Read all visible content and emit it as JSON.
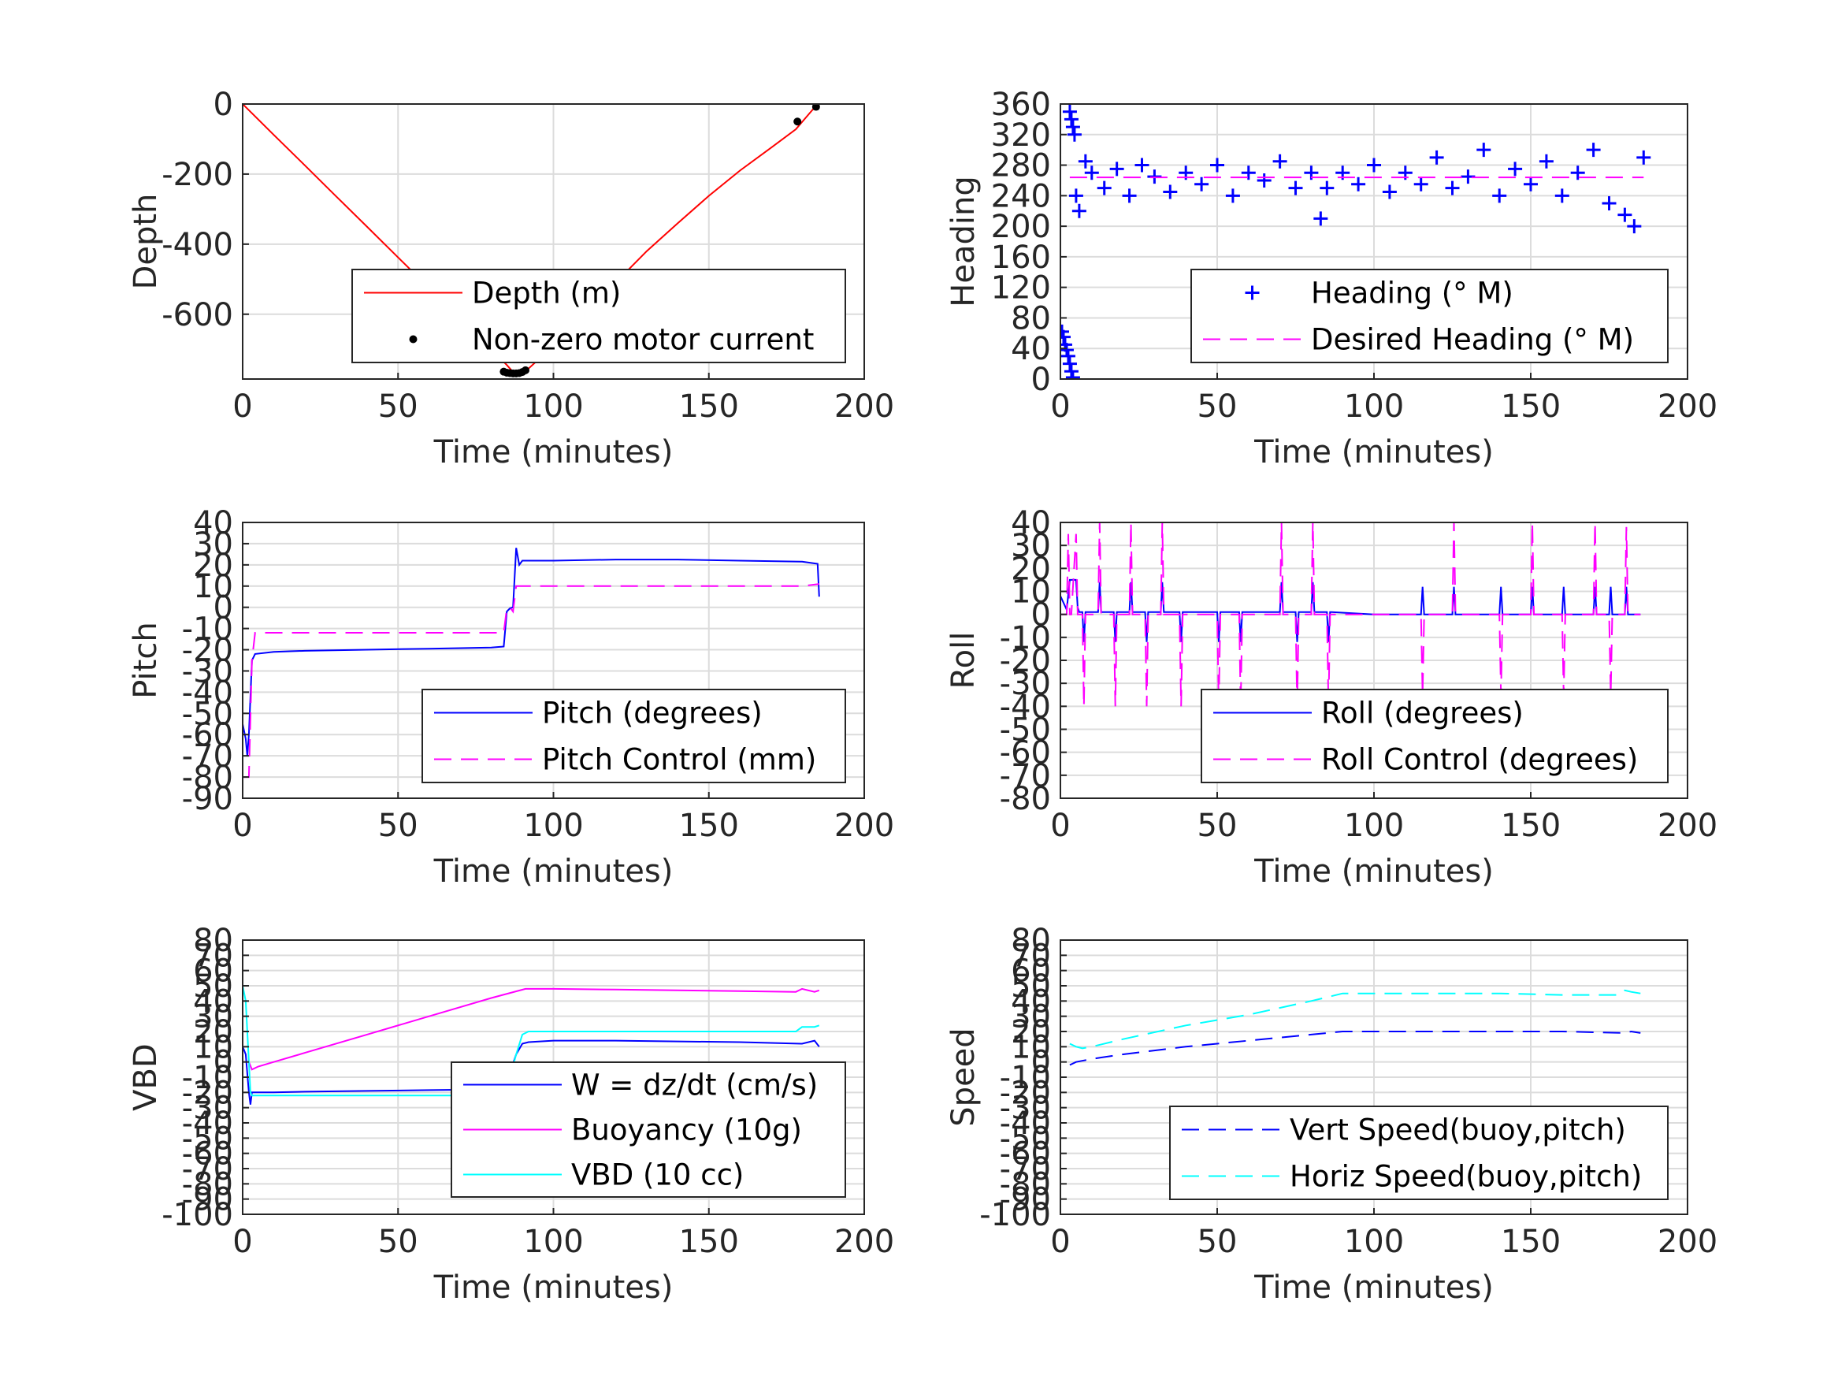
{
  "chart_data": [
    {
      "type": "line",
      "xlabel": "Time (minutes)",
      "ylabel": "Depth",
      "xlim": [
        0,
        200
      ],
      "ylim": [
        -785,
        0
      ],
      "xticks": [
        0,
        50,
        100,
        150,
        200
      ],
      "yticks": [
        0,
        -200,
        -400,
        -600
      ],
      "grid": true,
      "legend": "lower-right",
      "series": [
        {
          "name": "Depth (m)",
          "color": "#ff0000",
          "style": "solid",
          "x": [
            0,
            10,
            20,
            30,
            40,
            50,
            60,
            70,
            80,
            85,
            87,
            89,
            92,
            100,
            110,
            120,
            130,
            140,
            150,
            160,
            170,
            178,
            184
          ],
          "y": [
            0,
            -88,
            -175,
            -263,
            -350,
            -438,
            -525,
            -612,
            -700,
            -745,
            -765,
            -768,
            -755,
            -690,
            -600,
            -510,
            -420,
            -340,
            -262,
            -190,
            -125,
            -72,
            -10
          ]
        },
        {
          "name": "Non-zero motor current",
          "color": "#000000",
          "style": "dots",
          "x": [
            84,
            85,
            86,
            87,
            88,
            89,
            90,
            91,
            178.5,
            184.5
          ],
          "y": [
            -764,
            -767,
            -768,
            -769,
            -769,
            -768,
            -765,
            -760,
            -50,
            -8
          ]
        }
      ]
    },
    {
      "type": "scatter",
      "xlabel": "Time (minutes)",
      "ylabel": "Heading",
      "xlim": [
        0,
        200
      ],
      "ylim": [
        0,
        360
      ],
      "xticks": [
        0,
        50,
        100,
        150,
        200
      ],
      "yticks": [
        0,
        40,
        80,
        120,
        160,
        200,
        240,
        280,
        320,
        360
      ],
      "grid": true,
      "legend": "lower-right",
      "series": [
        {
          "name": "Heading (° M)",
          "color": "#0000ff",
          "style": "plus",
          "x": [
            0.5,
            1,
            1.5,
            2,
            2.5,
            3,
            3.5,
            4,
            3,
            3.5,
            4,
            4.5,
            5,
            6,
            8,
            10,
            14,
            18,
            22,
            26,
            30,
            35,
            40,
            45,
            50,
            55,
            60,
            65,
            70,
            75,
            80,
            83,
            85,
            90,
            95,
            100,
            105,
            110,
            115,
            120,
            125,
            130,
            135,
            140,
            145,
            150,
            155,
            160,
            165,
            170,
            175,
            180,
            183,
            186
          ],
          "y": [
            62,
            55,
            45,
            38,
            30,
            20,
            10,
            2,
            350,
            340,
            330,
            320,
            240,
            220,
            285,
            270,
            250,
            275,
            240,
            280,
            265,
            245,
            270,
            255,
            280,
            240,
            270,
            260,
            285,
            250,
            270,
            210,
            250,
            270,
            255,
            280,
            245,
            270,
            255,
            290,
            250,
            265,
            300,
            240,
            275,
            255,
            285,
            240,
            270,
            300,
            230,
            215,
            200,
            290
          ]
        },
        {
          "name": "Desired Heading (° M)",
          "color": "#ff00ff",
          "style": "dashed",
          "x": [
            3,
            186
          ],
          "y": [
            264,
            264
          ]
        }
      ]
    },
    {
      "type": "line",
      "xlabel": "Time (minutes)",
      "ylabel": "Pitch",
      "xlim": [
        0,
        200
      ],
      "ylim": [
        -90,
        40
      ],
      "xticks": [
        0,
        50,
        100,
        150,
        200
      ],
      "yticks": [
        40,
        30,
        20,
        10,
        0,
        -10,
        -20,
        -30,
        -40,
        -50,
        -60,
        -70,
        -80,
        -90
      ],
      "grid": true,
      "legend": "lower-right",
      "series": [
        {
          "name": "Pitch (degrees)",
          "color": "#0000ff",
          "style": "solid",
          "x": [
            0,
            1,
            1.5,
            2,
            3,
            4,
            10,
            20,
            40,
            60,
            80,
            84,
            85,
            86,
            87,
            88,
            89,
            90,
            100,
            120,
            140,
            160,
            180,
            185,
            185.5
          ],
          "y": [
            -55,
            -62,
            -70,
            -60,
            -25,
            -22,
            -21,
            -20.5,
            -20,
            -19.5,
            -19,
            -18.5,
            -2,
            -0.5,
            0,
            28,
            20,
            22,
            22,
            22.5,
            22.5,
            22,
            21.5,
            20.5,
            5
          ]
        },
        {
          "name": "Pitch Control (mm)",
          "color": "#ff00ff",
          "style": "dashed",
          "x": [
            0,
            1.5,
            2,
            3,
            4,
            10,
            40,
            80,
            84,
            85,
            86,
            87,
            88,
            90,
            100,
            140,
            180,
            185.5
          ],
          "y": [
            -80,
            -80,
            -80,
            -25,
            -12,
            -12,
            -12,
            -12,
            -12,
            -0.5,
            0,
            -2,
            10,
            10,
            10,
            10,
            10,
            11
          ]
        }
      ]
    },
    {
      "type": "line",
      "xlabel": "Time (minutes)",
      "ylabel": "Roll",
      "xlim": [
        0,
        200
      ],
      "ylim": [
        -80,
        40
      ],
      "xticks": [
        0,
        50,
        100,
        150,
        200
      ],
      "yticks": [
        40,
        30,
        20,
        10,
        0,
        -10,
        -20,
        -30,
        -40,
        -50,
        -60,
        -70,
        -80
      ],
      "grid": true,
      "legend": "lower-right",
      "series": [
        {
          "name": "Roll (degrees)",
          "color": "#0000ff",
          "style": "solid",
          "x": [
            0,
            1,
            2,
            3,
            3.5,
            5,
            5.5,
            6,
            7,
            7.5,
            8,
            12,
            12.5,
            13,
            13.5,
            17,
            17.5,
            18,
            18.5,
            22,
            22.5,
            23,
            23.5,
            27,
            27.5,
            28,
            28.5,
            32,
            32.5,
            33,
            33.5,
            38,
            38.5,
            39,
            39.5,
            50,
            50.5,
            51,
            51.5,
            57,
            57.5,
            58,
            58.5,
            70,
            70.5,
            71,
            71.5,
            75,
            75.5,
            76,
            76.5,
            80,
            80.5,
            81,
            81.5,
            85,
            85.5,
            86,
            86.5,
            100,
            115,
            115.5,
            116,
            116.5,
            125,
            125.5,
            126,
            126.5,
            140,
            140.5,
            141,
            141.5,
            150,
            150.5,
            151,
            151.5,
            160,
            160.5,
            161,
            161.5,
            170,
            170.5,
            171,
            171.5,
            175,
            175.5,
            176,
            176.5,
            180,
            180.5,
            181,
            181.5,
            185
          ],
          "y": [
            8,
            5,
            2,
            15,
            15,
            15,
            3,
            1,
            1,
            -12,
            1,
            1,
            14,
            1,
            1,
            1,
            -12,
            1,
            1,
            1,
            14,
            1,
            1,
            1,
            -12,
            1,
            1,
            1,
            14,
            1,
            1,
            1,
            -12,
            1,
            1,
            1,
            -12,
            1,
            1,
            1,
            -12,
            1,
            1,
            1,
            14,
            1,
            1,
            1,
            -12,
            1,
            1,
            1,
            14,
            1,
            1,
            1,
            -12,
            1,
            1,
            0,
            0,
            12,
            0,
            0,
            0,
            12,
            0,
            0,
            0,
            12,
            0,
            0,
            0,
            12,
            0,
            0,
            0,
            12,
            0,
            0,
            0,
            12,
            0,
            0,
            0,
            12,
            0,
            0,
            0,
            12,
            0,
            0,
            0
          ]
        },
        {
          "name": "Roll Control (degrees)",
          "color": "#ff00ff",
          "style": "dashed",
          "x": [
            0,
            2,
            2.5,
            3,
            3.5,
            5,
            5.5,
            6,
            7,
            7.5,
            8,
            12,
            12.5,
            13,
            13.5,
            17,
            17.5,
            18,
            18.5,
            22,
            22.5,
            23,
            23.5,
            27,
            27.5,
            28,
            28.5,
            32,
            32.5,
            33,
            33.5,
            38,
            38.5,
            39,
            39.5,
            50,
            50.5,
            51,
            51.5,
            57,
            57.5,
            58,
            58.5,
            70,
            70.5,
            71,
            71.5,
            75,
            75.5,
            76,
            76.5,
            80,
            80.5,
            81,
            81.5,
            85,
            85.5,
            86,
            86.5,
            100,
            115,
            115.5,
            116,
            116.5,
            125,
            125.5,
            126,
            126.5,
            140,
            140.5,
            141,
            141.5,
            150,
            150.5,
            151,
            151.5,
            160,
            160.5,
            161,
            161.5,
            170,
            170.5,
            171,
            171.5,
            175,
            175.5,
            176,
            176.5,
            180,
            180.5,
            181,
            181.5,
            185
          ],
          "y": [
            0,
            0,
            35,
            0,
            0,
            35,
            0,
            0,
            0,
            -40,
            0,
            0,
            40,
            0,
            0,
            0,
            -40,
            0,
            0,
            0,
            40,
            0,
            0,
            0,
            -40,
            0,
            0,
            0,
            40,
            0,
            0,
            0,
            -40,
            0,
            0,
            0,
            -40,
            0,
            0,
            0,
            -40,
            0,
            0,
            0,
            40,
            0,
            0,
            0,
            -40,
            0,
            0,
            0,
            40,
            0,
            0,
            0,
            -40,
            0,
            0,
            0,
            0,
            -35,
            0,
            0,
            0,
            40,
            0,
            0,
            0,
            -35,
            0,
            0,
            0,
            40,
            0,
            0,
            0,
            -35,
            0,
            0,
            0,
            40,
            0,
            0,
            0,
            -35,
            0,
            0,
            0,
            38,
            0,
            0,
            0
          ]
        }
      ]
    },
    {
      "type": "line",
      "xlabel": "Time (minutes)",
      "ylabel": "VBD",
      "xlim": [
        0,
        200
      ],
      "ylim": [
        -100,
        80
      ],
      "xticks": [
        0,
        50,
        100,
        150,
        200
      ],
      "yticks": [
        80,
        70,
        60,
        50,
        40,
        30,
        20,
        10,
        0,
        -10,
        -20,
        -30,
        -40,
        -50,
        -60,
        -70,
        -80,
        -90,
        -100
      ],
      "yticklabels": [
        "80",
        "70",
        "60",
        "50",
        "40",
        "30",
        "20",
        "10",
        "0",
        "-10",
        "-20",
        "-30",
        "-40",
        "-50",
        "-60",
        "-70",
        "-80",
        "-90",
        "-100"
      ],
      "grid": true,
      "legend": "lower-right",
      "series": [
        {
          "name": "W = dz/dt (cm/s)",
          "color": "#0000ff",
          "style": "solid",
          "x": [
            0,
            1,
            2,
            2.5,
            3,
            5,
            10,
            20,
            40,
            60,
            80,
            84,
            86,
            88,
            90,
            92,
            100,
            120,
            140,
            160,
            180,
            184,
            185.5
          ],
          "y": [
            10,
            5,
            -20,
            -28,
            -20,
            -20,
            -20,
            -19.5,
            -19,
            -18.5,
            -18,
            -18,
            -7,
            5,
            12,
            13,
            14,
            14,
            13.5,
            13,
            12,
            14,
            10
          ]
        },
        {
          "name": "Buoyancy (10g)",
          "color": "#ff00ff",
          "style": "solid",
          "x": [
            2,
            3,
            5,
            10,
            20,
            40,
            60,
            80,
            91,
            100,
            120,
            140,
            160,
            178,
            180,
            184,
            185.5
          ],
          "y": [
            0,
            -5,
            -3,
            0,
            6,
            18,
            30,
            42,
            48,
            48,
            47.5,
            47,
            46.5,
            46,
            48,
            46,
            47
          ]
        },
        {
          "name": "VBD (10 cc)",
          "color": "#00ffff",
          "style": "solid",
          "x": [
            0,
            1,
            2,
            2.5,
            3,
            5,
            20,
            40,
            60,
            80,
            85,
            86,
            88,
            90,
            92,
            100,
            120,
            140,
            160,
            178,
            180,
            184,
            185.5
          ],
          "y": [
            50,
            40,
            0,
            -20,
            -22,
            -22,
            -22,
            -22,
            -22,
            -22,
            -22,
            -10,
            5,
            18,
            20,
            20,
            20,
            20,
            20,
            20,
            23,
            23,
            24
          ]
        }
      ]
    },
    {
      "type": "line",
      "xlabel": "Time (minutes)",
      "ylabel": "Speed",
      "xlim": [
        0,
        200
      ],
      "ylim": [
        -100,
        80
      ],
      "xticks": [
        0,
        50,
        100,
        150,
        200
      ],
      "yticks": [
        80,
        70,
        60,
        50,
        40,
        30,
        20,
        10,
        0,
        -10,
        -20,
        -30,
        -40,
        -50,
        -60,
        -70,
        -80,
        -90,
        -100
      ],
      "yticklabels": [
        "80",
        "70",
        "60",
        "50",
        "40",
        "30",
        "20",
        "10",
        "0",
        "-10",
        "-20",
        "-30",
        "-40",
        "-50",
        "-60",
        "-70",
        "-80",
        "-90",
        "-100"
      ],
      "grid": true,
      "legend": "lower-right",
      "series": [
        {
          "name": "Vert Speed(buoy,pitch)",
          "color": "#0000ff",
          "style": "dashed",
          "x": [
            3,
            5,
            10,
            20,
            40,
            60,
            80,
            90,
            100,
            120,
            140,
            160,
            180,
            182,
            185
          ],
          "y": [
            -2,
            0,
            2,
            5,
            10,
            14,
            18,
            20,
            20,
            20,
            20,
            20,
            19,
            20,
            19
          ]
        },
        {
          "name": "Horiz Speed(buoy,pitch)",
          "color": "#00ffff",
          "style": "dashed",
          "x": [
            3,
            5,
            7,
            10,
            20,
            40,
            60,
            80,
            90,
            100,
            120,
            140,
            160,
            178,
            180,
            182,
            185
          ],
          "y": [
            12,
            10,
            9,
            10,
            15,
            24,
            31,
            40,
            45,
            45,
            45,
            45,
            44,
            44,
            47,
            46,
            45
          ]
        }
      ]
    }
  ]
}
